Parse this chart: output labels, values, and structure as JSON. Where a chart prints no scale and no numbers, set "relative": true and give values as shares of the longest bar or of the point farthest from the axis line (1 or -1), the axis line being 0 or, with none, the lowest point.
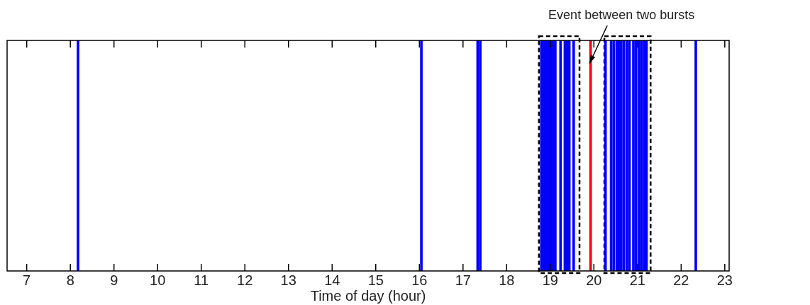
{
  "chart_data": {
    "type": "bar",
    "relative": true,
    "xlabel": "Time of day (hour)",
    "xlim": [
      6.55,
      23.1
    ],
    "xticks": [
      7,
      8,
      9,
      10,
      11,
      12,
      13,
      14,
      15,
      16,
      17,
      18,
      19,
      20,
      21,
      22,
      23
    ],
    "grid": false,
    "legend": false,
    "tick_labels": "x",
    "series": [
      {
        "color": "#0000ff",
        "x": [
          8.2,
          16.07,
          17.36,
          17.42,
          18.82,
          18.855,
          18.9,
          18.95,
          19.0,
          19.05,
          19.1,
          19.14,
          19.26,
          19.36,
          19.41,
          19.46,
          19.56,
          20.29,
          20.42,
          20.48,
          20.55,
          20.6,
          20.65,
          20.71,
          20.78,
          20.84,
          20.93,
          20.99,
          21.06,
          21.12,
          21.18,
          21.23,
          22.36
        ],
        "values": [
          1,
          1,
          1,
          1,
          1,
          1,
          1,
          1,
          1,
          1,
          1,
          1,
          1,
          1,
          1,
          1,
          1,
          1,
          1,
          1,
          1,
          1,
          1,
          1,
          1,
          1,
          1,
          1,
          1,
          1,
          1,
          1,
          1
        ]
      },
      {
        "color": "#ff0000",
        "x": [
          19.9
        ],
        "values": [
          1
        ]
      }
    ],
    "bands": [
      {
        "axis": "x",
        "from": 18.74,
        "to": 19.67,
        "color": "#000000"
      },
      {
        "axis": "x",
        "from": 20.24,
        "to": 21.3,
        "color": "#000000"
      }
    ],
    "annotations": [
      {
        "text": "Event between two bursts",
        "x": 19.9,
        "y": 0.9
      }
    ]
  }
}
